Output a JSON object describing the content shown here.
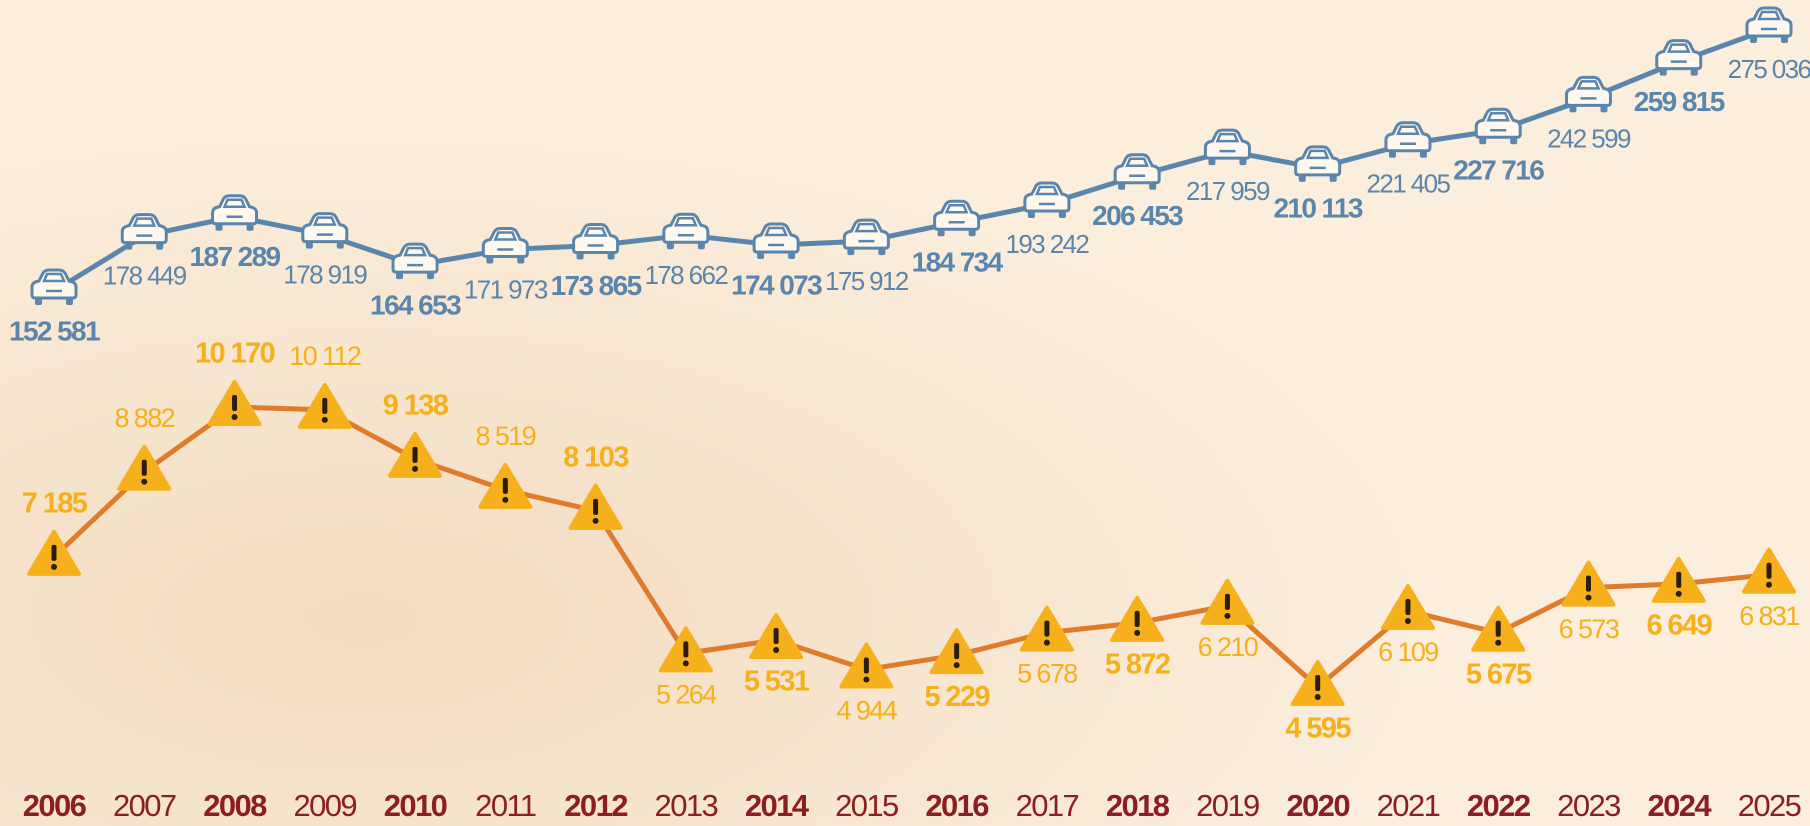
{
  "chart_data": {
    "type": "line",
    "categories": [
      "2006",
      "2007",
      "2008",
      "2009",
      "2010",
      "2011",
      "2012",
      "2013",
      "2014",
      "2015",
      "2016",
      "2017",
      "2018",
      "2019",
      "2020",
      "2021",
      "2022",
      "2023",
      "2024",
      "2025"
    ],
    "category_color": "#8b1e22",
    "series": [
      {
        "color": "#5a86ad",
        "values": [
          152581,
          178449,
          187289,
          178919,
          164653,
          171973,
          173865,
          178662,
          174073,
          175912,
          184734,
          193242,
          206453,
          217959,
          210113,
          221405,
          227716,
          242599,
          259815,
          275036
        ],
        "value_labels": [
          "152 581",
          "178 449",
          "187 289",
          "178 919",
          "164 653",
          "171 973",
          "173 865",
          "178 662",
          "174 073",
          "175 912",
          "184 734",
          "193 242",
          "206 453",
          "217 959",
          "210 113",
          "221 405",
          "227 716",
          "242 599",
          "259 815",
          "275 036"
        ]
      },
      {
        "color": "#e07b2c",
        "label_color": "#f5b01c",
        "values": [
          7185,
          8882,
          10170,
          10112,
          9138,
          8519,
          8103,
          5264,
          5531,
          4944,
          5229,
          5678,
          5872,
          6210,
          4595,
          6109,
          5675,
          6573,
          6649,
          6831
        ],
        "value_labels": [
          "7 185",
          "8 882",
          "10 170",
          "10 112",
          "9 138",
          "8 519",
          "8 103",
          "5 264",
          "5 531",
          "4 944",
          "5 229",
          "5 678",
          "5 872",
          "6 210",
          "4 595",
          "6 109",
          "5 675",
          "6 573",
          "6 649",
          "6 831"
        ]
      }
    ]
  }
}
